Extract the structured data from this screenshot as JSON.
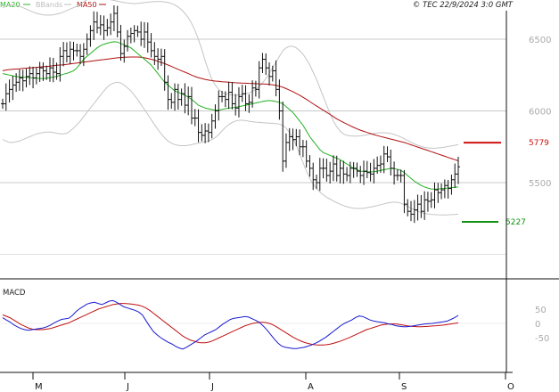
{
  "chart_data": [
    {
      "type": "candlestick",
      "legend": [
        {
          "label": "MA20",
          "color": "#2bb52b"
        },
        {
          "label": "BBands",
          "color": "#bdbdbd"
        },
        {
          "label": "MA50",
          "color": "#b01010"
        }
      ],
      "timestamp": "© TEC 22/9/2024 3:0 GMT",
      "ylim": [
        4800,
        6800
      ],
      "y_ticks": [
        5500,
        6000,
        6500
      ],
      "months": [
        "M",
        "J",
        "J",
        "A",
        "S",
        "O"
      ],
      "closes": [
        6050,
        6120,
        6150,
        6180,
        6200,
        6230,
        6210,
        6240,
        6260,
        6230,
        6260,
        6300,
        6280,
        6260,
        6300,
        6270,
        6260,
        6380,
        6420,
        6380,
        6430,
        6420,
        6420,
        6380,
        6430,
        6500,
        6560,
        6620,
        6580,
        6600,
        6560,
        6580,
        6620,
        6680,
        6550,
        6400,
        6450,
        6520,
        6540,
        6560,
        6550,
        6500,
        6550,
        6480,
        6420,
        6380,
        6360,
        6380,
        6200,
        6080,
        6060,
        6150,
        6080,
        6120,
        6040,
        6100,
        5950,
        5950,
        5850,
        5830,
        5860,
        5850,
        5930,
        6000,
        6100,
        6100,
        6080,
        6130,
        6050,
        6020,
        6100,
        6120,
        6050,
        6060,
        6160,
        6150,
        6300,
        6360,
        6300,
        6240,
        6280,
        6150,
        6000,
        5650,
        5780,
        5820,
        5800,
        5820,
        5750,
        5750,
        5650,
        5600,
        5520,
        5500,
        5600,
        5600,
        5550,
        5580,
        5630,
        5550,
        5600,
        5560,
        5550,
        5600,
        5600,
        5580,
        5550,
        5580,
        5570,
        5560,
        5600,
        5620,
        5630,
        5700,
        5680,
        5600,
        5550,
        5550,
        5550,
        5350,
        5300,
        5280,
        5310,
        5350,
        5300,
        5380,
        5370,
        5380,
        5450,
        5430,
        5450,
        5480,
        5460,
        5520,
        5560,
        5610
      ],
      "ma20": [
        6260,
        6255,
        6250,
        6245,
        6240,
        6238,
        6236,
        6235,
        6232,
        6230,
        6228,
        6226,
        6225,
        6228,
        6232,
        6236,
        6240,
        6248,
        6256,
        6262,
        6270,
        6280,
        6300,
        6330,
        6360,
        6380,
        6400,
        6420,
        6440,
        6455,
        6465,
        6472,
        6478,
        6482,
        6480,
        6470,
        6460,
        6450,
        6440,
        6420,
        6400,
        6380,
        6360,
        6340,
        6320,
        6290,
        6260,
        6230,
        6200,
        6180,
        6160,
        6140,
        6130,
        6120,
        6110,
        6095,
        6080,
        6060,
        6040,
        6030,
        6020,
        6015,
        6010,
        6005,
        6005,
        6010,
        6015,
        6020,
        6022,
        6025,
        6030,
        6035,
        6040,
        6045,
        6050,
        6055,
        6060,
        6066,
        6070,
        6072,
        6070,
        6065,
        6060,
        6050,
        6030,
        6010,
        5990,
        5960,
        5930,
        5900,
        5860,
        5820,
        5790,
        5760,
        5730,
        5710,
        5700,
        5690,
        5680,
        5670,
        5660,
        5645,
        5630,
        5615,
        5600,
        5590,
        5580,
        5578,
        5576,
        5575,
        5576,
        5580,
        5585,
        5590,
        5595,
        5600,
        5598,
        5592,
        5585,
        5570,
        5550,
        5530,
        5510,
        5495,
        5480,
        5470,
        5462,
        5456,
        5455,
        5456,
        5458,
        5460,
        5462,
        5465,
        5468,
        5470
      ],
      "ma50": [
        6280,
        6285,
        6288,
        6290,
        6292,
        6294,
        6296,
        6298,
        6300,
        6302,
        6304,
        6306,
        6308,
        6310,
        6312,
        6315,
        6318,
        6320,
        6322,
        6325,
        6328,
        6331,
        6334,
        6337,
        6340,
        6343,
        6346,
        6349,
        6352,
        6355,
        6358,
        6361,
        6364,
        6367,
        6370,
        6372,
        6374,
        6375,
        6376,
        6376,
        6376,
        6374,
        6370,
        6366,
        6360,
        6354,
        6346,
        6338,
        6330,
        6320,
        6310,
        6300,
        6290,
        6280,
        6270,
        6260,
        6250,
        6240,
        6232,
        6226,
        6220,
        6215,
        6211,
        6208,
        6206,
        6204,
        6202,
        6200,
        6198,
        6196,
        6195,
        6194,
        6193,
        6192,
        6191,
        6190,
        6189,
        6188,
        6187,
        6185,
        6182,
        6178,
        6172,
        6165,
        6155,
        6145,
        6135,
        6122,
        6110,
        6095,
        6080,
        6065,
        6050,
        6035,
        6020,
        6005,
        5990,
        5975,
        5960,
        5945,
        5932,
        5920,
        5908,
        5896,
        5885,
        5875,
        5866,
        5858,
        5850,
        5842,
        5835,
        5828,
        5822,
        5816,
        5810,
        5804,
        5798,
        5792,
        5786,
        5780,
        5772,
        5764,
        5756,
        5748,
        5740,
        5732,
        5724,
        5716,
        5708,
        5700,
        5692,
        5684,
        5676,
        5668,
        5660,
        5652
      ],
      "bb_upper": [
        6720,
        6730,
        6740,
        6740,
        6735,
        6730,
        6720,
        6710,
        6700,
        6690,
        6680,
        6675,
        6670,
        6668,
        6668,
        6670,
        6675,
        6680,
        6690,
        6700,
        6710,
        6720,
        6730,
        6745,
        6760,
        6775,
        6785,
        6790,
        6790,
        6788,
        6785,
        6780,
        6775,
        6770,
        6765,
        6760,
        6755,
        6752,
        6750,
        6748,
        6750,
        6752,
        6755,
        6758,
        6760,
        6762,
        6763,
        6762,
        6760,
        6756,
        6750,
        6740,
        6725,
        6705,
        6680,
        6650,
        6610,
        6560,
        6500,
        6430,
        6350,
        6280,
        6220,
        6180,
        6150,
        6130,
        6120,
        6115,
        6110,
        6110,
        6110,
        6115,
        6120,
        6125,
        6135,
        6150,
        6170,
        6195,
        6225,
        6260,
        6300,
        6340,
        6380,
        6420,
        6440,
        6450,
        6450,
        6440,
        6420,
        6395,
        6360,
        6320,
        6270,
        6220,
        6160,
        6100,
        6040,
        5980,
        5930,
        5890,
        5860,
        5840,
        5830,
        5826,
        5824,
        5824,
        5826,
        5830,
        5834,
        5838,
        5842,
        5846,
        5848,
        5848,
        5846,
        5842,
        5836,
        5828,
        5818,
        5806,
        5794,
        5782,
        5770,
        5760,
        5752,
        5746,
        5742,
        5740,
        5740,
        5742,
        5745,
        5748,
        5752,
        5756,
        5760,
        5765
      ],
      "bb_lower": [
        5800,
        5790,
        5780,
        5780,
        5785,
        5790,
        5800,
        5810,
        5820,
        5830,
        5840,
        5845,
        5850,
        5852,
        5852,
        5850,
        5845,
        5840,
        5840,
        5845,
        5860,
        5880,
        5905,
        5930,
        5960,
        5990,
        6020,
        6050,
        6080,
        6110,
        6140,
        6165,
        6185,
        6195,
        6200,
        6195,
        6180,
        6160,
        6140,
        6110,
        6080,
        6045,
        6010,
        5975,
        5940,
        5905,
        5870,
        5840,
        5812,
        5790,
        5775,
        5765,
        5760,
        5758,
        5758,
        5760,
        5765,
        5770,
        5775,
        5780,
        5785,
        5790,
        5800,
        5815,
        5835,
        5860,
        5885,
        5905,
        5920,
        5930,
        5935,
        5935,
        5932,
        5928,
        5925,
        5922,
        5920,
        5918,
        5916,
        5915,
        5914,
        5912,
        5908,
        5900,
        5880,
        5850,
        5810,
        5760,
        5700,
        5640,
        5580,
        5530,
        5490,
        5460,
        5435,
        5415,
        5398,
        5385,
        5372,
        5360,
        5350,
        5340,
        5332,
        5326,
        5322,
        5320,
        5320,
        5322,
        5326,
        5330,
        5335,
        5340,
        5346,
        5352,
        5358,
        5362,
        5364,
        5362,
        5356,
        5346,
        5334,
        5322,
        5310,
        5300,
        5292,
        5286,
        5282,
        5279,
        5277,
        5276,
        5275,
        5275,
        5276,
        5277,
        5278,
        5280
      ],
      "price_levels": [
        {
          "label": "5779",
          "value": 5779,
          "color": "#d01010"
        },
        {
          "label": "5227",
          "value": 5227,
          "color": "#109010"
        }
      ]
    },
    {
      "type": "line",
      "title": "MACD",
      "ylim": [
        -100,
        100
      ],
      "y_ticks": [
        "50",
        "0",
        "-50"
      ],
      "macd": [
        20,
        12,
        5,
        -5,
        -12,
        -18,
        -22,
        -24,
        -22,
        -20,
        -18,
        -16,
        -12,
        -6,
        2,
        8,
        14,
        16,
        18,
        28,
        42,
        52,
        60,
        68,
        72,
        74,
        70,
        66,
        72,
        78,
        80,
        74,
        66,
        58,
        54,
        50,
        46,
        40,
        30,
        10,
        -10,
        -28,
        -40,
        -50,
        -58,
        -66,
        -72,
        -80,
        -86,
        -90,
        -84,
        -76,
        -68,
        -60,
        -50,
        -40,
        -34,
        -28,
        -22,
        -12,
        -2,
        6,
        14,
        18,
        20,
        22,
        24,
        22,
        16,
        10,
        2,
        -10,
        -24,
        -40,
        -56,
        -70,
        -80,
        -84,
        -86,
        -88,
        -88,
        -86,
        -84,
        -80,
        -76,
        -70,
        -64,
        -56,
        -48,
        -38,
        -28,
        -18,
        -8,
        0,
        6,
        12,
        20,
        26,
        24,
        18,
        12,
        8,
        6,
        4,
        2,
        -2,
        -4,
        -8,
        -10,
        -12,
        -12,
        -10,
        -8,
        -6,
        -4,
        -2,
        -1,
        0,
        2,
        4,
        6,
        8,
        14,
        20,
        28
      ],
      "signal": [
        30,
        25,
        20,
        12,
        4,
        -4,
        -10,
        -16,
        -20,
        -22,
        -22,
        -22,
        -20,
        -18,
        -14,
        -10,
        -6,
        -2,
        2,
        8,
        14,
        20,
        26,
        32,
        38,
        44,
        50,
        54,
        58,
        62,
        66,
        68,
        70,
        70,
        69,
        68,
        66,
        64,
        60,
        54,
        46,
        36,
        26,
        16,
        6,
        -4,
        -14,
        -24,
        -34,
        -44,
        -52,
        -58,
        -62,
        -66,
        -68,
        -68,
        -66,
        -62,
        -56,
        -50,
        -44,
        -38,
        -32,
        -26,
        -20,
        -14,
        -8,
        -4,
        0,
        2,
        4,
        4,
        2,
        -2,
        -8,
        -16,
        -24,
        -32,
        -40,
        -48,
        -55,
        -61,
        -66,
        -70,
        -73,
        -75,
        -76,
        -76,
        -75,
        -73,
        -70,
        -66,
        -62,
        -57,
        -52,
        -46,
        -40,
        -34,
        -28,
        -22,
        -18,
        -14,
        -10,
        -6,
        -4,
        -2,
        -2,
        -2,
        -4,
        -6,
        -8,
        -10,
        -11,
        -12,
        -12,
        -11,
        -10,
        -9,
        -8,
        -7,
        -6,
        -4,
        -2,
        0,
        2
      ]
    }
  ]
}
